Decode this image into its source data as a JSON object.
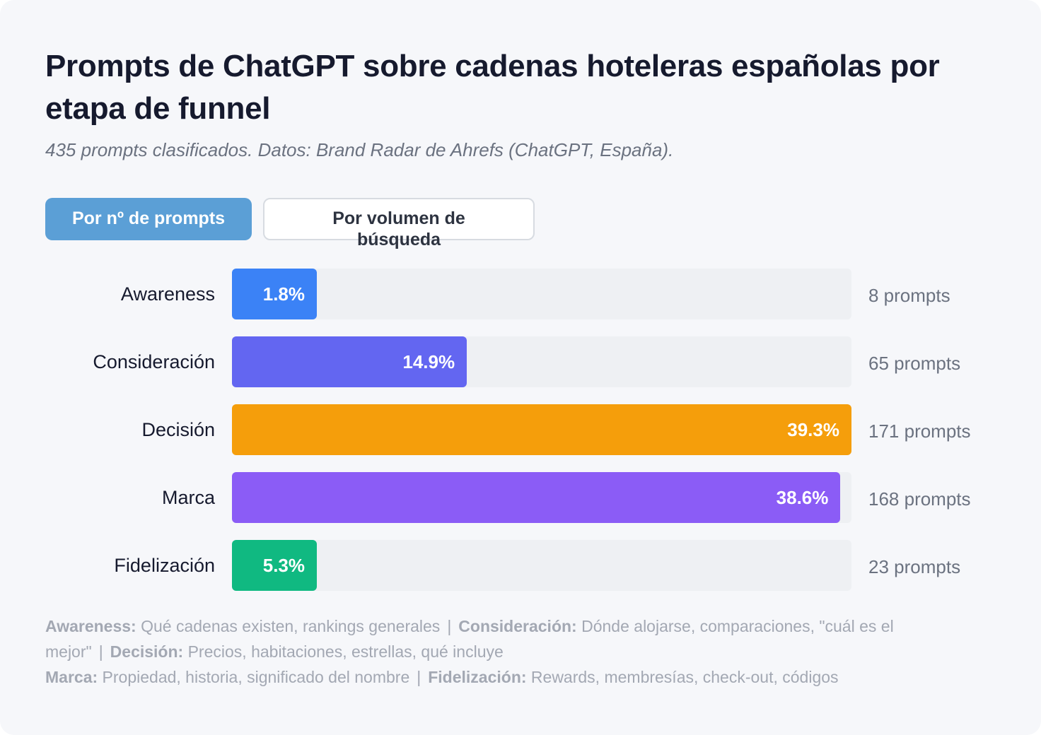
{
  "title": "Prompts de ChatGPT sobre cadenas hoteleras españolas por etapa de funnel",
  "subtitle": "435 prompts clasificados. Datos: Brand Radar de Ahrefs (ChatGPT, España).",
  "tabs": [
    {
      "label": "Por nº de prompts",
      "active": true
    },
    {
      "label": "Por volumen de búsqueda",
      "active": false
    }
  ],
  "chart_data": {
    "type": "bar",
    "orientation": "horizontal",
    "categories": [
      "Awareness",
      "Consideración",
      "Decisión",
      "Marca",
      "Fidelización"
    ],
    "values": [
      1.8,
      14.9,
      39.3,
      38.6,
      5.3
    ],
    "value_labels": [
      "1.8%",
      "14.9%",
      "39.3%",
      "38.6%",
      "5.3%"
    ],
    "counts": [
      "8 prompts",
      "65 prompts",
      "171 prompts",
      "168 prompts",
      "23 prompts"
    ],
    "colors": [
      "#3b82f6",
      "#6366f1",
      "#f59e0b",
      "#8b5cf6",
      "#10b981"
    ],
    "xlim": [
      0,
      39.3
    ],
    "grid": false
  },
  "legend": {
    "lines": [
      [
        {
          "term": "Awareness:",
          "desc": "Qué cadenas existen, rankings generales"
        },
        {
          "term": "Consideración:",
          "desc": "Dónde alojarse, comparaciones, \"cuál es el mejor\""
        },
        {
          "term": "Decisión:",
          "desc": "Precios, habitaciones, estrellas, qué incluye"
        }
      ],
      [
        {
          "term": "Marca:",
          "desc": "Propiedad, historia, significado del nombre"
        },
        {
          "term": "Fidelización:",
          "desc": "Rewards, membresías, check-out, códigos"
        }
      ]
    ],
    "separator": "|"
  }
}
